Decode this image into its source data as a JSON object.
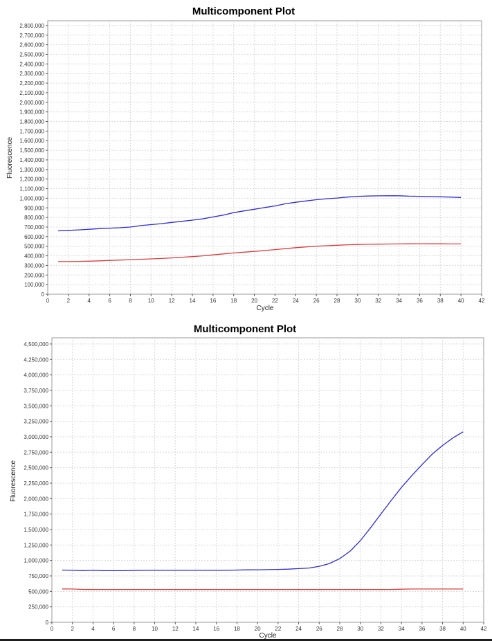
{
  "chart_data": [
    {
      "type": "line",
      "title": "Multicomponent Plot",
      "xlabel": "Cycle",
      "ylabel": "Fluorescence",
      "xlim": [
        0,
        42
      ],
      "ylim": [
        0,
        2850000
      ],
      "x_ticks": [
        0,
        2,
        4,
        6,
        8,
        10,
        12,
        14,
        16,
        18,
        20,
        22,
        24,
        26,
        28,
        30,
        32,
        34,
        36,
        38,
        40,
        42
      ],
      "y_ticks": [
        0,
        100000,
        200000,
        300000,
        400000,
        500000,
        600000,
        700000,
        800000,
        900000,
        1000000,
        1100000,
        1200000,
        1300000,
        1400000,
        1500000,
        1600000,
        1700000,
        1800000,
        1900000,
        2000000,
        2100000,
        2200000,
        2300000,
        2400000,
        2500000,
        2600000,
        2700000,
        2800000
      ],
      "grid": true,
      "x": [
        1,
        2,
        3,
        4,
        5,
        6,
        7,
        8,
        9,
        10,
        11,
        12,
        13,
        14,
        15,
        16,
        17,
        18,
        19,
        20,
        21,
        22,
        23,
        24,
        25,
        26,
        27,
        28,
        29,
        30,
        31,
        32,
        33,
        34,
        35,
        36,
        37,
        38,
        39,
        40
      ],
      "series": [
        {
          "color": "#2b2bd6",
          "values": [
            660000,
            665000,
            670000,
            677000,
            683000,
            688000,
            693000,
            700000,
            715000,
            725000,
            735000,
            748000,
            760000,
            772000,
            785000,
            805000,
            825000,
            850000,
            868000,
            885000,
            903000,
            920000,
            942000,
            958000,
            972000,
            985000,
            995000,
            1002000,
            1012000,
            1020000,
            1023000,
            1025000,
            1026000,
            1026000,
            1022000,
            1020000,
            1018000,
            1015000,
            1012000,
            1008000
          ]
        },
        {
          "color": "#e03a3a",
          "values": [
            340000,
            340000,
            342000,
            344000,
            348000,
            352000,
            356000,
            360000,
            364000,
            368000,
            372000,
            378000,
            385000,
            392000,
            400000,
            410000,
            420000,
            430000,
            438000,
            446000,
            455000,
            465000,
            475000,
            485000,
            493000,
            500000,
            505000,
            510000,
            515000,
            518000,
            520000,
            522000,
            523000,
            524000,
            525000,
            526000,
            525000,
            525000,
            524000,
            524000
          ]
        }
      ]
    },
    {
      "type": "line",
      "title": "Multicomponent Plot",
      "xlabel": "Cycle",
      "ylabel": "Fluorescence",
      "xlim": [
        0,
        42
      ],
      "ylim": [
        0,
        4600000
      ],
      "x_ticks": [
        0,
        2,
        4,
        6,
        8,
        10,
        12,
        14,
        16,
        18,
        20,
        22,
        24,
        26,
        28,
        30,
        32,
        34,
        36,
        38,
        40,
        42
      ],
      "y_ticks": [
        0,
        250000,
        500000,
        750000,
        1000000,
        1250000,
        1500000,
        1750000,
        2000000,
        2250000,
        2500000,
        2750000,
        3000000,
        3250000,
        3500000,
        3750000,
        4000000,
        4250000,
        4500000
      ],
      "grid": true,
      "x": [
        1,
        2,
        3,
        4,
        5,
        6,
        7,
        8,
        9,
        10,
        11,
        12,
        13,
        14,
        15,
        16,
        17,
        18,
        19,
        20,
        21,
        22,
        23,
        24,
        25,
        26,
        27,
        28,
        29,
        30,
        31,
        32,
        33,
        34,
        35,
        36,
        37,
        38,
        39,
        40
      ],
      "series": [
        {
          "color": "#2b2bd6",
          "values": [
            845000,
            840000,
            835000,
            840000,
            835000,
            835000,
            835000,
            838000,
            840000,
            840000,
            840000,
            840000,
            840000,
            840000,
            840000,
            840000,
            840000,
            845000,
            848000,
            850000,
            852000,
            855000,
            860000,
            868000,
            878000,
            905000,
            950000,
            1030000,
            1150000,
            1320000,
            1530000,
            1750000,
            1970000,
            2180000,
            2370000,
            2550000,
            2720000,
            2860000,
            2980000,
            3080000
          ]
        },
        {
          "color": "#e03a3a",
          "values": [
            540000,
            538000,
            532000,
            530000,
            530000,
            530000,
            530000,
            530000,
            530000,
            530000,
            530000,
            530000,
            530000,
            530000,
            530000,
            530000,
            530000,
            530000,
            530000,
            530000,
            530000,
            530000,
            530000,
            530000,
            530000,
            530000,
            530000,
            530000,
            530000,
            530000,
            530000,
            530000,
            530000,
            535000,
            538000,
            538000,
            538000,
            538000,
            538000,
            538000
          ]
        }
      ]
    }
  ]
}
